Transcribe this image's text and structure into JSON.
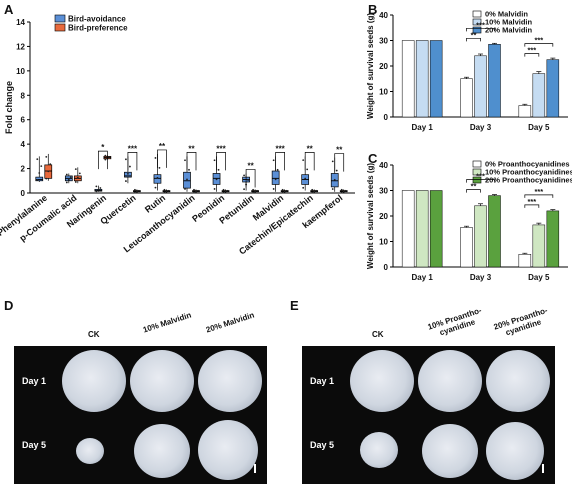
{
  "panels": {
    "A": {
      "letter": "A",
      "ylabel": "Fold change",
      "yticks": [
        "0",
        "2",
        "4",
        "6",
        "8",
        "10",
        "12",
        "14"
      ],
      "legend": [
        {
          "label": "Bird-avoidance",
          "color": "#5b8fd6"
        },
        {
          "label": "Bird-preference",
          "color": "#e8693c"
        }
      ],
      "categories": [
        "L- Phenylalanine",
        "p-Coumalic acid",
        "Naringenin",
        "Quercetin",
        "Rutin",
        "Leucoanthocyanidin",
        "Peonidin",
        "Petunidin",
        "Malvidin",
        "Catechin/Epicatechin",
        "kaempferol"
      ],
      "significance": [
        "",
        "",
        "*",
        "***",
        "**",
        "**",
        "***",
        "**",
        "***",
        "**",
        "**"
      ]
    },
    "B": {
      "letter": "B",
      "ylabel": "Weight of survival seeds (g)",
      "yticks": [
        "0",
        "10",
        "20",
        "30",
        "40"
      ],
      "legend": [
        "0% Malvidin",
        "10% Malvidin",
        "20% Malvidin"
      ],
      "colors": [
        "#ffffff",
        "#c5dcf2",
        "#4f8fce"
      ],
      "categories": [
        "Day 1",
        "Day 3",
        "Day 5"
      ],
      "sig": [
        [
          "**",
          "***"
        ],
        [
          "***",
          "***"
        ]
      ]
    },
    "C": {
      "letter": "C",
      "ylabel": "Weight of survival seeds (g)",
      "yticks": [
        "0",
        "10",
        "20",
        "30",
        "40"
      ],
      "legend": [
        "0% Proanthocyanidines",
        "10% Proanthocyanidines",
        "20% Proanthocyanidines"
      ],
      "colors": [
        "#ffffff",
        "#cfe7c2",
        "#5aa13e"
      ],
      "categories": [
        "Day 1",
        "Day 3",
        "Day 5"
      ],
      "sig": [
        [
          "**",
          "***"
        ],
        [
          "***",
          "***"
        ]
      ]
    },
    "D": {
      "letter": "D",
      "columns": [
        "CK",
        "10% Malvidin",
        "20% Malvidin"
      ],
      "rows": [
        "Day 1",
        "Day 5"
      ]
    },
    "E": {
      "letter": "E",
      "columns": [
        "CK",
        "10% Proantho-\ncyanidine",
        "20% Proantho-\ncyanidine"
      ],
      "rows": [
        "Day 1",
        "Day 5"
      ]
    }
  },
  "chart_data": [
    {
      "type": "box",
      "ylabel": "Fold change",
      "ylim": [
        0,
        14
      ],
      "categories": [
        "L- Phenylalanine",
        "p-Coumalic acid",
        "Naringenin",
        "Quercetin",
        "Rutin",
        "Leucoanthocyanidin",
        "Peonidin",
        "Petunidin",
        "Malvidin",
        "Catechin/Epicatechin",
        "kaempferol"
      ],
      "series": [
        {
          "name": "Bird-avoidance",
          "color": "#5b8fd6",
          "box": [
            [
              0.9,
              1.0,
              1.3,
              3.0
            ],
            [
              0.8,
              1.0,
              1.4,
              1.6
            ],
            [
              0.1,
              0.15,
              0.3,
              0.6
            ],
            [
              0.8,
              1.3,
              1.7,
              3.0
            ],
            [
              0.2,
              0.8,
              1.5,
              3.2
            ],
            [
              0.1,
              0.4,
              1.7,
              3.0
            ],
            [
              0.1,
              0.7,
              1.6,
              3.0
            ],
            [
              0.2,
              0.9,
              1.3,
              1.6
            ],
            [
              0.1,
              0.7,
              1.8,
              3.0
            ],
            [
              0.2,
              0.7,
              1.5,
              3.0
            ],
            [
              0.1,
              0.5,
              1.6,
              2.9
            ]
          ],
          "median": [
            1.1,
            1.2,
            0.2,
            1.4,
            1.2,
            1.0,
            1.2,
            1.1,
            1.2,
            1.1,
            1.0
          ]
        },
        {
          "name": "Bird-preference",
          "color": "#e8693c",
          "box": [
            [
              1.0,
              1.2,
              2.3,
              3.2
            ],
            [
              0.8,
              1.0,
              1.4,
              2.1
            ],
            [
              2.7,
              2.8,
              3.0,
              3.1
            ],
            [
              0.0,
              0.1,
              0.2,
              0.3
            ],
            [
              0.0,
              0.1,
              0.2,
              0.3
            ],
            [
              0.0,
              0.1,
              0.2,
              0.3
            ],
            [
              0.0,
              0.1,
              0.2,
              0.3
            ],
            [
              0.0,
              0.1,
              0.2,
              0.3
            ],
            [
              0.0,
              0.1,
              0.2,
              0.3
            ],
            [
              0.0,
              0.1,
              0.2,
              0.3
            ],
            [
              0.0,
              0.1,
              0.2,
              0.3
            ]
          ],
          "median": [
            1.8,
            1.2,
            2.9,
            0.15,
            0.15,
            0.15,
            0.15,
            0.15,
            0.15,
            0.15,
            0.15
          ]
        }
      ]
    },
    {
      "type": "bar",
      "ylabel": "Weight of survival seeds (g)",
      "ylim": [
        0,
        40
      ],
      "categories": [
        "Day 1",
        "Day 3",
        "Day 5"
      ],
      "series": [
        {
          "name": "0% Malvidin",
          "values": [
            30,
            15,
            4.5
          ],
          "err": [
            0,
            0.6,
            0.5
          ]
        },
        {
          "name": "10% Malvidin",
          "values": [
            30,
            24,
            17
          ],
          "err": [
            0,
            0.7,
            0.8
          ]
        },
        {
          "name": "20% Malvidin",
          "values": [
            30,
            28.5,
            22.5
          ],
          "err": [
            0,
            0.4,
            0.6
          ]
        }
      ]
    },
    {
      "type": "bar",
      "ylabel": "Weight of survival seeds (g)",
      "ylim": [
        0,
        40
      ],
      "categories": [
        "Day 1",
        "Day 3",
        "Day 5"
      ],
      "series": [
        {
          "name": "0% Proanthocyanidines",
          "values": [
            30,
            15.5,
            5
          ],
          "err": [
            0,
            0.5,
            0.4
          ]
        },
        {
          "name": "10% Proanthocyanidines",
          "values": [
            30,
            24,
            16.5
          ],
          "err": [
            0,
            0.8,
            0.7
          ]
        },
        {
          "name": "20% Proanthocyanidines",
          "values": [
            30,
            28,
            22
          ],
          "err": [
            0,
            0.4,
            0.5
          ]
        }
      ]
    }
  ]
}
